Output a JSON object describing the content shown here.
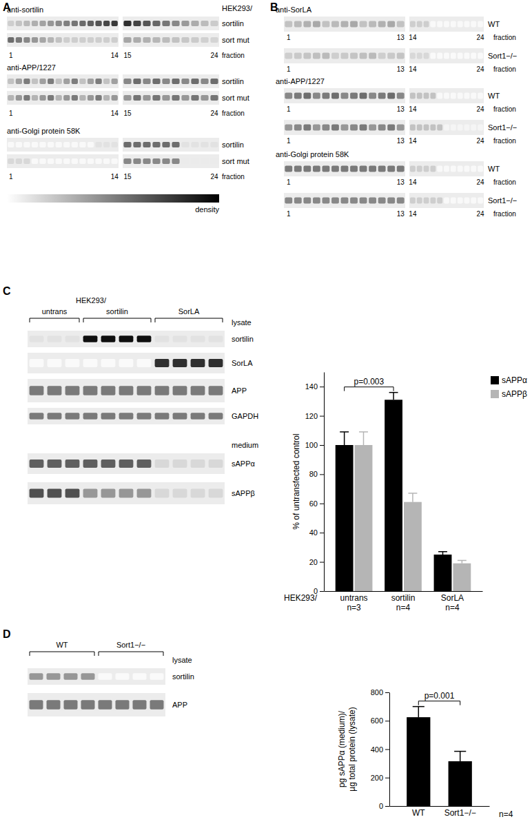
{
  "panels": {
    "A": {
      "label": "A",
      "cell_line": "HEK293/",
      "fraction_word": "fraction",
      "density": "density",
      "fractions": [
        "1",
        "14",
        "15",
        "24"
      ],
      "blots": [
        {
          "antibody": "anti-sortilin",
          "rows": [
            "sortilin",
            "sort mut"
          ]
        },
        {
          "antibody": "anti-APP/1227",
          "rows": [
            "sortilin",
            "sort mut"
          ]
        },
        {
          "antibody": "anti-Golgi protein 58K",
          "rows": [
            "sortilin",
            "sort mut"
          ]
        }
      ]
    },
    "B": {
      "label": "B",
      "fraction_word": "fraction",
      "fractions": [
        "1",
        "13",
        "14",
        "24"
      ],
      "blots": [
        {
          "antibody": "anti-SorLA",
          "rows": [
            "WT",
            "Sort1−/−"
          ]
        },
        {
          "antibody": "anti-APP/1227",
          "rows": [
            "WT",
            "Sort1−/−"
          ]
        },
        {
          "antibody": "anti-Golgi protein 58K",
          "rows": [
            "WT",
            "Sort1−/−"
          ]
        }
      ]
    },
    "C": {
      "label": "C",
      "cell_line": "HEK293/",
      "groups": [
        "untrans",
        "sortilin",
        "SorLA"
      ],
      "sections": [
        {
          "name": "lysate",
          "rows": [
            "sortilin",
            "SorLA",
            "APP",
            "GAPDH"
          ]
        },
        {
          "name": "medium",
          "rows": [
            "sAPPα",
            "sAPPβ"
          ]
        }
      ]
    },
    "D": {
      "label": "D",
      "groups": [
        "WT",
        "Sort1−/−"
      ],
      "sections": [
        {
          "name": "lysate",
          "rows": [
            "sortilin",
            "APP"
          ]
        }
      ]
    }
  },
  "chart_data": [
    {
      "type": "bar",
      "xlabel": "HEK293/",
      "ylabel": "% of untransfected control",
      "categories": [
        "untrans\nn=3",
        "sortilin\nn=4",
        "SorLA\nn=4"
      ],
      "series": [
        {
          "name": "sAPPα",
          "color": "#000000",
          "values": [
            100,
            131,
            25
          ],
          "errors": [
            9,
            5,
            2
          ]
        },
        {
          "name": "sAPPβ",
          "color": "#b5b5b5",
          "values": [
            100,
            61,
            19
          ],
          "errors": [
            9,
            6,
            2
          ]
        }
      ],
      "ylim": [
        0,
        150
      ],
      "yticks": [
        0,
        20,
        40,
        60,
        80,
        100,
        120,
        140
      ],
      "legend": "top-right",
      "annotations": [
        {
          "text": "p=0.003"
        }
      ]
    },
    {
      "type": "bar",
      "ylabel": "pg sAPPα (medium)/\nµg total protein (lysate)",
      "categories": [
        "WT",
        "Sort1−/−"
      ],
      "values": [
        625,
        315
      ],
      "errors": [
        75,
        70
      ],
      "color": "#000000",
      "ylim": [
        0,
        800
      ],
      "yticks": [
        0,
        200,
        400,
        600,
        800
      ],
      "annotations": [
        {
          "text": "p=0.001"
        },
        {
          "text": "n=4"
        }
      ]
    }
  ]
}
